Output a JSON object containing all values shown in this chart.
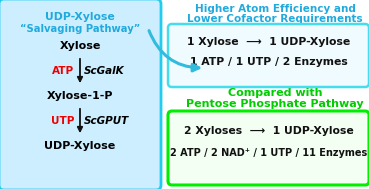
{
  "bg_color": "#ffffff",
  "left_box_facecolor": "#cceeff",
  "left_box_edgecolor": "#22ccee",
  "left_title1": "UDP-Xylose",
  "left_title2": "“Salvaging Pathway”",
  "left_title_color": "#22aadd",
  "enzyme1": "ScGalK",
  "enzyme2": "ScGPUT",
  "cofactor1": "ATP",
  "cofactor2": "UTP",
  "cofactor_color": "#ee0000",
  "arrow_color": "#111111",
  "right_title_line1": "Higher Atom Efficiency and",
  "right_title_line2": "Lower Cofactor Requirements",
  "right_title_color": "#22aadd",
  "compare_title_line1": "Compared with",
  "compare_title_line2": "Pentose Phosphate Pathway",
  "compare_title_color": "#00cc00",
  "top_box_facecolor": "#f0fbff",
  "top_box_edgecolor": "#44ddee",
  "top_box_line1a": "1 Xylose ",
  "top_box_arrow": "⟶",
  "top_box_line1b": " 1 UDP-Xylose",
  "top_box_line2": "1 ATP / 1 UTP / 2 Enzymes",
  "bottom_box_facecolor": "#f4fff4",
  "bottom_box_edgecolor": "#00ee00",
  "bottom_box_line1a": "2 Xyloses ",
  "bottom_box_line1b": " 1 UDP-Xylose",
  "bottom_box_line2a": "2 ATP / 2 NAD",
  "bottom_box_line2b": "+ / 1 UTP / 11 Enzymes",
  "box_text_color": "#111111",
  "curved_arrow_color": "#33bbdd",
  "figsize": [
    3.69,
    1.89
  ],
  "dpi": 100
}
